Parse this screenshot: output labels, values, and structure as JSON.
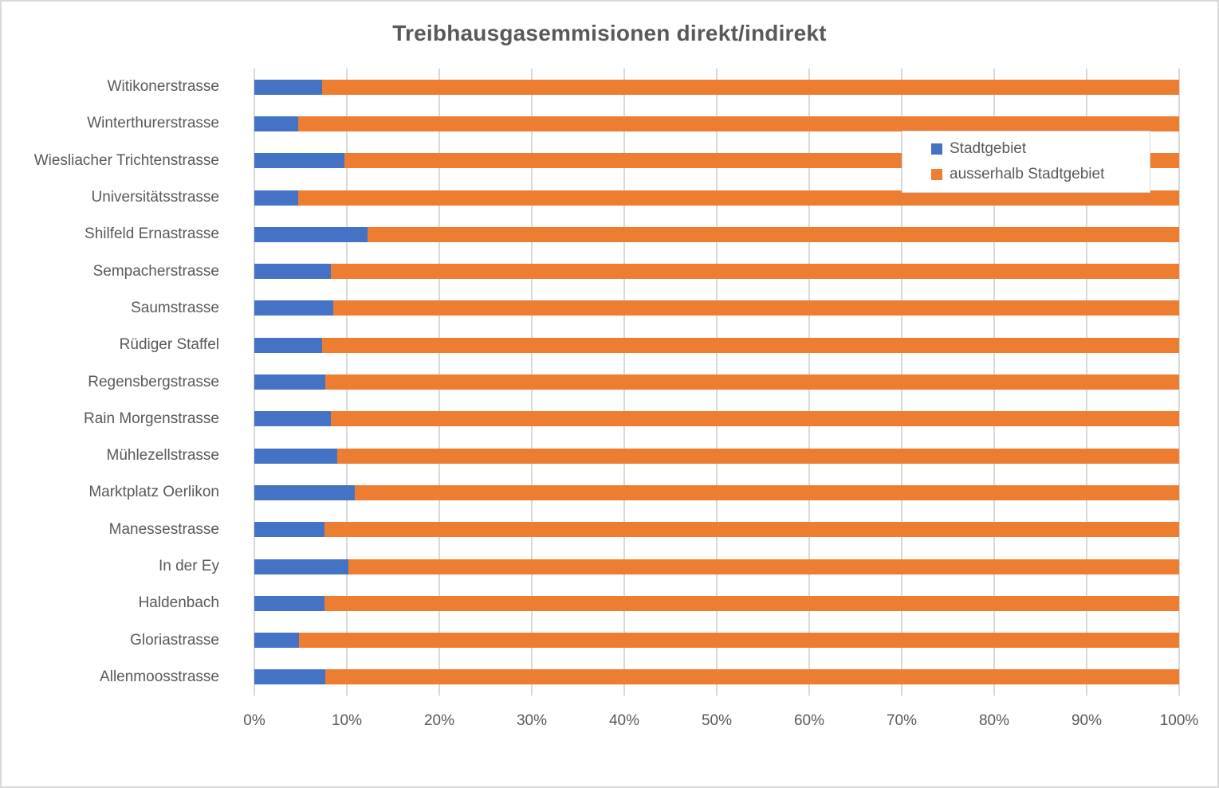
{
  "chart_title": "Treibhausgasemmisionen direkt/indirekt",
  "colors": {
    "stadtgebiet": "#4472C4",
    "ausserhalb": "#ED7D31",
    "gridline": "#D9D9D9",
    "text": "#595959",
    "legend_border": "#D9D9D9",
    "background": "#FFFFFF"
  },
  "legend": {
    "items": [
      {
        "label": "Stadtgebiet",
        "color": "#4472C4"
      },
      {
        "label": "ausserhalb Stadtgebiet",
        "color": "#ED7D31"
      }
    ]
  },
  "chart_data": {
    "type": "bar",
    "orientation": "horizontal",
    "stacked": true,
    "unit": "percent",
    "title": "Treibhausgasemmisionen direkt/indirekt",
    "xlabel": "",
    "ylabel": "",
    "xlim": [
      0,
      100
    ],
    "grid": true,
    "legend_position": "inside-right-upper",
    "categories": [
      "Witikonerstrasse",
      "Winterthurerstrasse",
      "Wiesliacher Trichtenstrasse",
      "Universitätsstrasse",
      "Shilfeld Ernastrasse",
      "Sempacherstrasse",
      "Saumstrasse",
      "Rüdiger Staffel",
      "Regensbergstrasse",
      "Rain Morgenstrasse",
      "Mühlezellstrasse",
      "Marktplatz Oerlikon",
      "Manessestrasse",
      "In der Ey",
      "Haldenbach",
      "Gloriastrasse",
      "Allenmoosstrasse"
    ],
    "series": [
      {
        "name": "Stadtgebiet",
        "color": "#4472C4",
        "values": [
          7.3,
          4.7,
          9.7,
          4.7,
          12.2,
          8.3,
          8.5,
          7.3,
          7.7,
          8.3,
          9.0,
          10.9,
          7.6,
          10.2,
          7.6,
          4.8,
          7.7
        ]
      },
      {
        "name": "ausserhalb Stadtgebiet",
        "color": "#ED7D31",
        "values": [
          92.7,
          95.3,
          90.3,
          95.3,
          87.8,
          91.7,
          91.5,
          92.7,
          92.3,
          91.7,
          91.0,
          89.1,
          92.4,
          89.8,
          92.4,
          95.2,
          92.3
        ]
      }
    ],
    "x_axis": {
      "ticks": [
        "0%",
        "10%",
        "20%",
        "30%",
        "40%",
        "50%",
        "60%",
        "70%",
        "80%",
        "90%",
        "100%"
      ],
      "min": 0,
      "max": 100,
      "step": 10
    }
  }
}
